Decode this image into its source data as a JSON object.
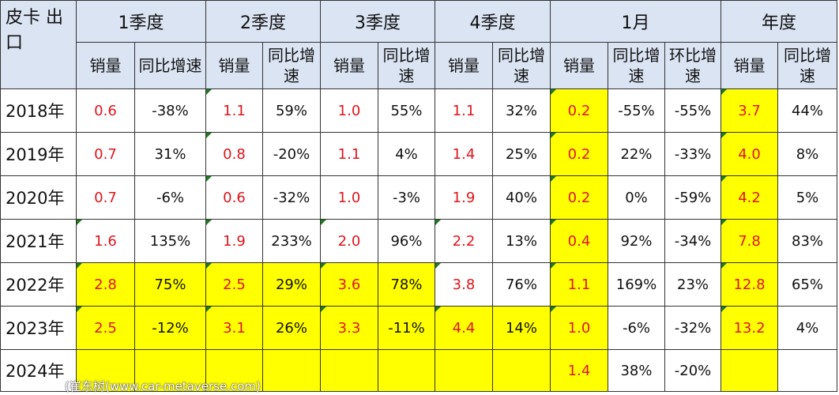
{
  "corner_label": "皮卡 出口",
  "headers": {
    "q1": "1季度",
    "q2": "2季度",
    "q3": "3季度",
    "q4": "4季度",
    "jan": "1月",
    "annual": "年度",
    "sales": "销量",
    "yoy": "同比增速",
    "mom": "环比增速"
  },
  "highlight_color": "#ffff00",
  "sales_text_color": "#e0141c",
  "rows": [
    {
      "year": "2018年",
      "q1_sales": "0.6",
      "q1_yoy": "-38%",
      "q2_sales": "1.1",
      "q2_yoy": "59%",
      "q3_sales": "1.0",
      "q3_yoy": "55%",
      "q4_sales": "1.1",
      "q4_yoy": "32%",
      "jan_sales": "0.2",
      "jan_yoy": "-55%",
      "jan_mom": "-55%",
      "annual_sales": "3.7",
      "annual_yoy": "44%"
    },
    {
      "year": "2019年",
      "q1_sales": "0.7",
      "q1_yoy": "31%",
      "q2_sales": "0.8",
      "q2_yoy": "-20%",
      "q3_sales": "1.1",
      "q3_yoy": "4%",
      "q4_sales": "1.4",
      "q4_yoy": "25%",
      "jan_sales": "0.2",
      "jan_yoy": "22%",
      "jan_mom": "-33%",
      "annual_sales": "4.0",
      "annual_yoy": "8%"
    },
    {
      "year": "2020年",
      "q1_sales": "0.7",
      "q1_yoy": "-6%",
      "q2_sales": "0.6",
      "q2_yoy": "-32%",
      "q3_sales": "1.0",
      "q3_yoy": "-3%",
      "q4_sales": "1.9",
      "q4_yoy": "40%",
      "jan_sales": "0.2",
      "jan_yoy": "0%",
      "jan_mom": "-59%",
      "annual_sales": "4.2",
      "annual_yoy": "5%"
    },
    {
      "year": "2021年",
      "q1_sales": "1.6",
      "q1_yoy": "135%",
      "q2_sales": "1.9",
      "q2_yoy": "233%",
      "q3_sales": "2.0",
      "q3_yoy": "96%",
      "q4_sales": "2.2",
      "q4_yoy": "13%",
      "jan_sales": "0.4",
      "jan_yoy": "92%",
      "jan_mom": "-34%",
      "annual_sales": "7.8",
      "annual_yoy": "83%"
    },
    {
      "year": "2022年",
      "q1_sales": "2.8",
      "q1_yoy": "75%",
      "q2_sales": "2.5",
      "q2_yoy": "29%",
      "q3_sales": "3.6",
      "q3_yoy": "78%",
      "q4_sales": "3.8",
      "q4_yoy": "76%",
      "jan_sales": "1.1",
      "jan_yoy": "169%",
      "jan_mom": "23%",
      "annual_sales": "12.8",
      "annual_yoy": "65%"
    },
    {
      "year": "2023年",
      "q1_sales": "2.5",
      "q1_yoy": "-12%",
      "q2_sales": "3.1",
      "q2_yoy": "26%",
      "q3_sales": "3.3",
      "q3_yoy": "-11%",
      "q4_sales": "4.4",
      "q4_yoy": "14%",
      "jan_sales": "1.0",
      "jan_yoy": "-6%",
      "jan_mom": "-32%",
      "annual_sales": "13.2",
      "annual_yoy": "4%"
    },
    {
      "year": "2024年",
      "q1_sales": "",
      "q1_yoy": "",
      "q2_sales": "",
      "q2_yoy": "",
      "q3_sales": "",
      "q3_yoy": "",
      "q4_sales": "",
      "q4_yoy": "",
      "jan_sales": "1.4",
      "jan_yoy": "38%",
      "jan_mom": "-20%",
      "annual_sales": "",
      "annual_yoy": ""
    }
  ],
  "watermark": "(崔东树(www.car-metaverse.com)"
}
